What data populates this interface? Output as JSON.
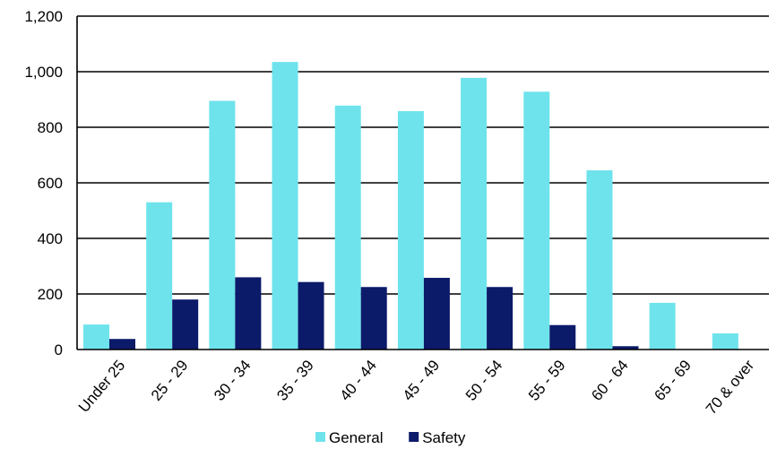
{
  "chart_data": {
    "type": "bar",
    "title": "",
    "xlabel": "",
    "ylabel": "",
    "ylim": [
      0,
      1200
    ],
    "yticks": [
      0,
      200,
      400,
      600,
      800,
      1000,
      1200
    ],
    "ytick_labels": [
      "0",
      "200",
      "400",
      "600",
      "800",
      "1,000",
      "1,200"
    ],
    "grid": "horizontal",
    "legend_position": "bottom",
    "categories": [
      "Under 25",
      "25 - 29",
      "30 - 34",
      "35 - 39",
      "40 - 44",
      "45 - 49",
      "50 - 54",
      "55 - 59",
      "60 - 64",
      "65 - 69",
      "70 & over"
    ],
    "series": [
      {
        "name": "General",
        "color": "#6ee3ec",
        "values": [
          90,
          530,
          895,
          1035,
          878,
          858,
          978,
          928,
          645,
          168,
          58
        ]
      },
      {
        "name": "Safety",
        "color": "#0c1a6a",
        "values": [
          38,
          180,
          260,
          243,
          225,
          258,
          225,
          88,
          12,
          0,
          0
        ]
      }
    ]
  }
}
